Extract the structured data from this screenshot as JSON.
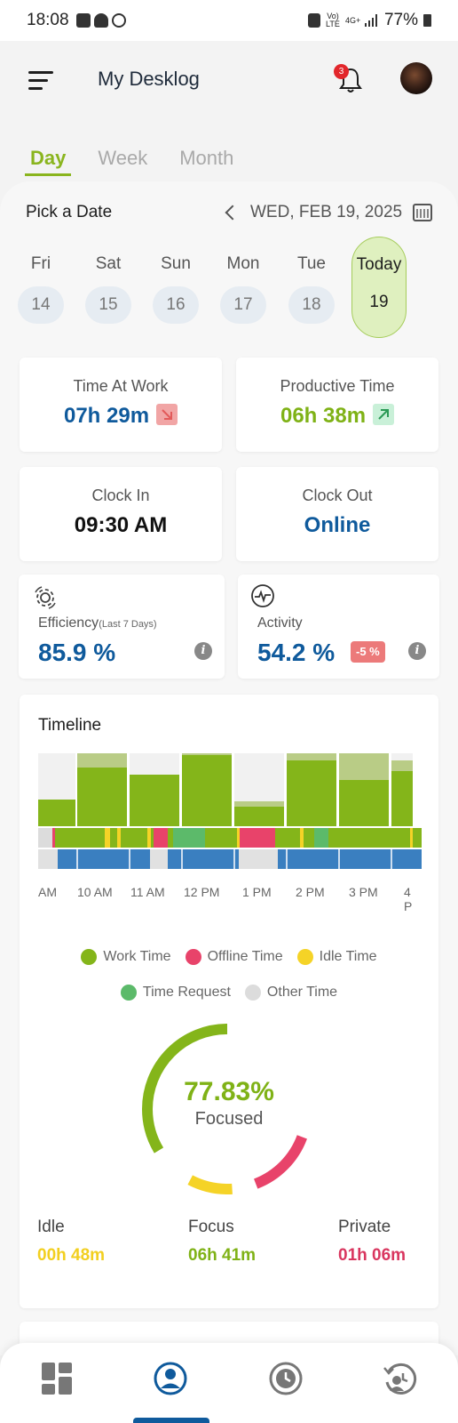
{
  "status_bar": {
    "time": "18:08",
    "network": "Vo) LTE",
    "network2": "4G+",
    "battery": "77%"
  },
  "app": {
    "title": "My Desklog",
    "notification_count": "3"
  },
  "tabs": [
    {
      "label": "Day",
      "active": true
    },
    {
      "label": "Week",
      "active": false
    },
    {
      "label": "Month",
      "active": false
    }
  ],
  "date_picker": {
    "label": "Pick a Date",
    "current_date": "WED, FEB 19, 2025",
    "days": [
      {
        "name": "Fri",
        "num": "14"
      },
      {
        "name": "Sat",
        "num": "15"
      },
      {
        "name": "Sun",
        "num": "16"
      },
      {
        "name": "Mon",
        "num": "17"
      },
      {
        "name": "Tue",
        "num": "18"
      },
      {
        "name": "Today",
        "num": "19"
      }
    ]
  },
  "stats": {
    "time_at_work": {
      "label": "Time At Work",
      "value": "07h 29m",
      "trend": "down"
    },
    "productive_time": {
      "label": "Productive Time",
      "value": "06h 38m",
      "trend": "up"
    },
    "clock_in": {
      "label": "Clock In",
      "value": "09:30 AM"
    },
    "clock_out": {
      "label": "Clock Out",
      "value": "Online"
    },
    "efficiency": {
      "label": "Efficiency",
      "sublabel": "(Last 7 Days)",
      "value": "85.9 %"
    },
    "activity": {
      "label": "Activity",
      "value": "54.2 %",
      "change": "-5 %"
    }
  },
  "timeline": {
    "title": "Timeline",
    "hour_labels": [
      "AM",
      "10 AM",
      "11 AM",
      "12 PM",
      "1 PM",
      "2 PM",
      "3 PM",
      "4 P"
    ],
    "legend": [
      {
        "label": "Work Time",
        "color": "#84b51a"
      },
      {
        "label": "Offline Time",
        "color": "#e8436a"
      },
      {
        "label": "Idle Time",
        "color": "#f5d327"
      },
      {
        "label": "Time Request",
        "color": "#5cba6a"
      },
      {
        "label": "Other Time",
        "color": "#dcdcdc"
      }
    ]
  },
  "focus": {
    "percent_label": "77.83%",
    "caption": "Focused",
    "focused_fraction": 0.7783,
    "offline_fraction": 0.135,
    "idle_fraction": 0.0867
  },
  "summary": {
    "idle": {
      "label": "Idle",
      "value": "00h 48m",
      "color": "#f2cf1f"
    },
    "focus": {
      "label": "Focus",
      "value": "06h 41m",
      "color": "#7fb216"
    },
    "private": {
      "label": "Private",
      "value": "01h 06m",
      "color": "#d9365f"
    }
  },
  "bottom_nav": [
    {
      "name": "dashboard",
      "active": false
    },
    {
      "name": "profile",
      "active": true
    },
    {
      "name": "attendance",
      "active": false
    },
    {
      "name": "history",
      "active": false
    }
  ]
}
